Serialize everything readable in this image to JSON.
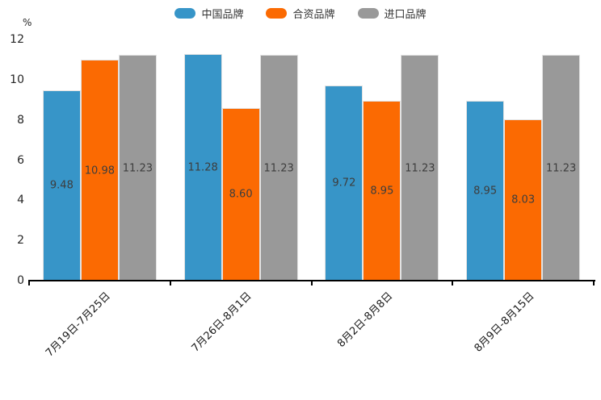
{
  "chart_data": {
    "type": "bar",
    "title": "",
    "ylabel": "%",
    "xlabel": "",
    "ylim": [
      0,
      12
    ],
    "y_ticks": [
      0,
      2,
      4,
      6,
      8,
      10,
      12
    ],
    "grid": false,
    "legend_position": "top-center",
    "x_label_rotation_deg": -45,
    "categories": [
      "7月19日-7月25日",
      "7月26日-8月1日",
      "8月2日-8月8日",
      "8月9日-8月15日"
    ],
    "series": [
      {
        "key": "china-brand",
        "name": "中国品牌",
        "color": "#3795c8",
        "values": [
          9.48,
          11.28,
          9.72,
          8.95
        ]
      },
      {
        "key": "jv-brand",
        "name": "合资品牌",
        "color": "#fb6a02",
        "values": [
          10.98,
          8.6,
          8.95,
          8.03
        ]
      },
      {
        "key": "import-brand",
        "name": "进口品牌",
        "color": "#999999",
        "values": [
          11.23,
          11.23,
          11.23,
          11.23
        ]
      }
    ],
    "value_label_decimals": 2,
    "colors": {
      "axis": "#000000",
      "text": "#262626",
      "value_label": "#3d3d3d"
    }
  }
}
